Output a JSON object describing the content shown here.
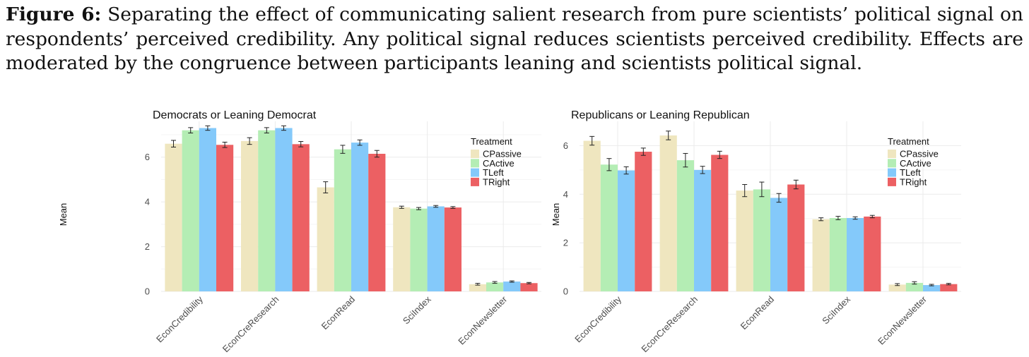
{
  "caption": {
    "label": "Figure 6:",
    "text": "Separating the effect of communicating salient research from pure scientists’ political signal on respondents’ perceived credibility.  Any political signal reduces scientists perceived credibility. Effects are moderated by the congruence between participants leaning and scientists political signal."
  },
  "chart_data": [
    {
      "type": "bar",
      "title": "Democrats or Leaning Democrat",
      "xlabel": "",
      "ylabel": "Mean",
      "ylim": [
        0,
        7.6
      ],
      "yticks": [
        0,
        2,
        4,
        6
      ],
      "grid": true,
      "legend_title": "Treatment",
      "legend_position": "right",
      "categories": [
        "EconCredibility",
        "EconCreResearch",
        "EconRead",
        "SciIndex",
        "EconNewsletter"
      ],
      "series": [
        {
          "name": "CPassive",
          "color": "#EFE6BF",
          "values": [
            6.6,
            6.72,
            4.65,
            3.76,
            0.32
          ],
          "errors": [
            0.15,
            0.15,
            0.25,
            0.05,
            0.04
          ]
        },
        {
          "name": "CActive",
          "color": "#B4EDB4",
          "values": [
            7.2,
            7.2,
            6.35,
            3.7,
            0.4
          ],
          "errors": [
            0.12,
            0.12,
            0.18,
            0.05,
            0.04
          ]
        },
        {
          "name": "TLeft",
          "color": "#84C9FA",
          "values": [
            7.3,
            7.3,
            6.65,
            3.8,
            0.44
          ],
          "errors": [
            0.1,
            0.1,
            0.12,
            0.04,
            0.03
          ]
        },
        {
          "name": "TRight",
          "color": "#EC6063",
          "values": [
            6.55,
            6.58,
            6.15,
            3.75,
            0.37
          ],
          "errors": [
            0.12,
            0.12,
            0.15,
            0.04,
            0.03
          ]
        }
      ]
    },
    {
      "type": "bar",
      "title": "Republicans or Leaning Republican",
      "xlabel": "",
      "ylabel": "Mean",
      "ylim": [
        0,
        7.0
      ],
      "yticks": [
        0,
        2,
        4,
        6
      ],
      "grid": true,
      "legend_title": "Treatment",
      "legend_position": "right",
      "categories": [
        "EconCredibility",
        "EconCreResearch",
        "EconRead",
        "SciIndex",
        "EconNewsletter"
      ],
      "series": [
        {
          "name": "CPassive",
          "color": "#EFE6BF",
          "values": [
            6.2,
            6.42,
            4.15,
            2.97,
            0.28
          ],
          "errors": [
            0.18,
            0.18,
            0.25,
            0.06,
            0.04
          ]
        },
        {
          "name": "CActive",
          "color": "#B4EDB4",
          "values": [
            5.22,
            5.4,
            4.2,
            3.02,
            0.35
          ],
          "errors": [
            0.25,
            0.28,
            0.3,
            0.07,
            0.05
          ]
        },
        {
          "name": "TLeft",
          "color": "#84C9FA",
          "values": [
            4.98,
            5.0,
            3.85,
            3.02,
            0.26
          ],
          "errors": [
            0.15,
            0.15,
            0.18,
            0.05,
            0.03
          ]
        },
        {
          "name": "TRight",
          "color": "#EC6063",
          "values": [
            5.75,
            5.62,
            4.4,
            3.08,
            0.3
          ],
          "errors": [
            0.15,
            0.15,
            0.18,
            0.05,
            0.03
          ]
        }
      ]
    }
  ]
}
